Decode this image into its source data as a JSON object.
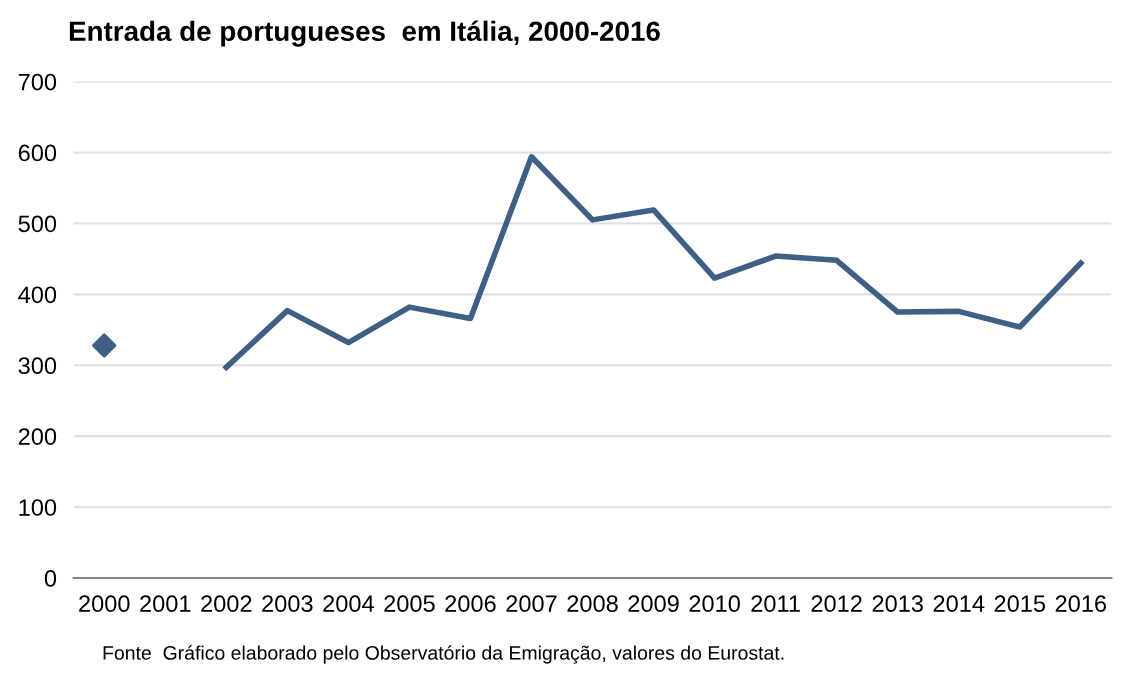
{
  "chart_data": {
    "type": "line",
    "title": "Entrada de portugueses  em Itália, 2000-2016",
    "categories": [
      "2000",
      "2001",
      "2002",
      "2003",
      "2004",
      "2005",
      "2006",
      "2007",
      "2008",
      "2009",
      "2010",
      "2011",
      "2012",
      "2013",
      "2014",
      "2015",
      "2016"
    ],
    "series": [
      {
        "color": "#3f5f85",
        "marker": "none",
        "values": [
          null,
          null,
          297,
          377,
          332,
          382,
          366,
          594,
          505,
          519,
          423,
          454,
          448,
          375,
          376,
          354,
          444
        ]
      },
      {
        "type": "scatter",
        "color": "#3f5f85",
        "marker": "diamond",
        "values": [
          328,
          null,
          null,
          null,
          null,
          null,
          null,
          null,
          null,
          null,
          null,
          null,
          null,
          null,
          null,
          null,
          null
        ]
      }
    ],
    "ylim": [
      0,
      700
    ],
    "yticks": [
      0,
      100,
      200,
      300,
      400,
      500,
      600,
      700
    ],
    "grid": "y",
    "line_style": "solid",
    "annotations": [
      "Fonte  Gráfico elaborado pelo Observatório da Emigração, valores do Eurostat."
    ]
  }
}
